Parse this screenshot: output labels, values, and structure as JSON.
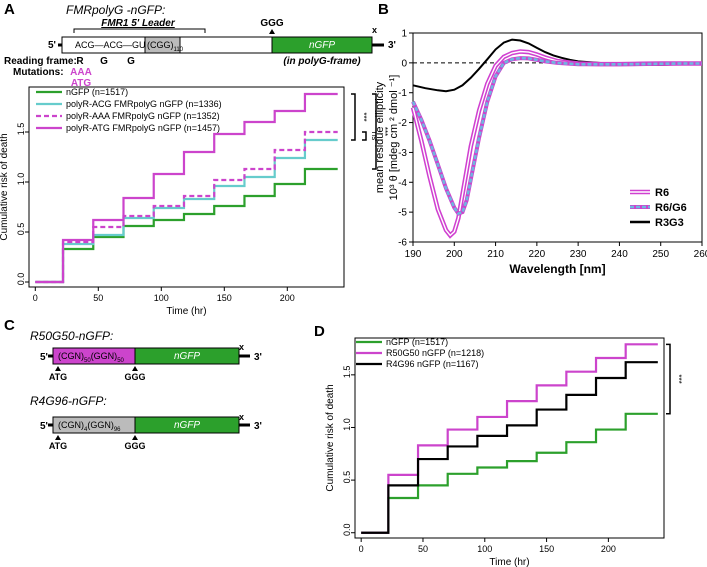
{
  "panels": {
    "A": {
      "label": "A",
      "construct": {
        "title": "FMRpolyG -nGFP:",
        "leader_label": "FMR1 5' Leader",
        "ggg_label": "GGG",
        "x_label": "x",
        "five_prime": "5'",
        "three_prime": "3'",
        "codons": "ACG—ACG—GUG",
        "repeat": "(CGG)",
        "repeat_sub": "110",
        "gfp": "nGFP",
        "in_frame": "(in polyG-frame)",
        "reading_frame_label": "Reading frame:",
        "reading_frame_letters": [
          "R",
          "G",
          "G"
        ],
        "mutations_label": "Mutations:",
        "mutations": [
          "AAA",
          "ATG"
        ]
      },
      "chart_data": {
        "type": "line",
        "steps": true,
        "title": "",
        "xlabel": "Time (hr)",
        "ylabel": "Cumulative risk of death",
        "xlim": [
          -5,
          245
        ],
        "ylim": [
          -0.05,
          1.95
        ],
        "xticks": [
          0,
          50,
          100,
          150,
          200
        ],
        "yticks": [
          0.0,
          0.5,
          1.0,
          1.5
        ],
        "step_times": [
          0,
          22,
          46,
          70,
          94,
          118,
          142,
          166,
          190,
          214
        ],
        "end_time": 240,
        "series": [
          {
            "name": "nGFP (n=1517)",
            "color": "#2ca02c",
            "dashed": false,
            "values": [
              0,
              0.33,
              0.45,
              0.56,
              0.62,
              0.68,
              0.76,
              0.86,
              0.98,
              1.13
            ]
          },
          {
            "name": "polyR-ACG FMRpolyG nGFP (n=1336)",
            "color": "#66cccc",
            "dashed": false,
            "values": [
              0,
              0.38,
              0.47,
              0.64,
              0.74,
              0.83,
              0.96,
              1.05,
              1.24,
              1.42
            ]
          },
          {
            "name": "polyR-AAA FMRpolyG nGFP (n=1352)",
            "color": "#cc44cc",
            "dashed": true,
            "values": [
              0,
              0.4,
              0.55,
              0.66,
              0.76,
              0.86,
              1.02,
              1.13,
              1.32,
              1.5
            ]
          },
          {
            "name": "polyR-ATG FMRpolyG nGFP (n=1457)",
            "color": "#cc44cc",
            "dashed": false,
            "values": [
              0,
              0.42,
              0.62,
              0.84,
              1.08,
              1.3,
              1.48,
              1.6,
              1.71,
              1.88
            ]
          }
        ],
        "significance": [
          {
            "label": "***",
            "from_series": 3,
            "to_series": 1
          },
          {
            "label": "ns",
            "from_series": 2,
            "to_series": 1
          },
          {
            "label": "***",
            "from_series": 3,
            "to_series": 0
          }
        ]
      }
    },
    "B": {
      "label": "B",
      "chart_data": {
        "type": "line",
        "title": "",
        "xlabel": "Wavelength [nm]",
        "ylabel_line1": "mean residue ellipticity",
        "ylabel_line2": "10³ θ [mdeg cm ² dmol ⁻¹]",
        "xlim": [
          190,
          260
        ],
        "ylim": [
          -6,
          1
        ],
        "xticks": [
          190,
          200,
          210,
          220,
          230,
          240,
          250,
          260
        ],
        "yticks": [
          1,
          0,
          -1,
          -2,
          -3,
          -4,
          -5,
          -6
        ],
        "zero_line": true,
        "series": [
          {
            "name": "R6",
            "color": "#d040d0",
            "style": "double",
            "x": [
              190,
              192,
              194,
              196,
              198,
              199,
              200,
              201,
              202,
              203,
              204,
              206,
              208,
              210,
              212,
              214,
              216,
              218,
              220,
              222,
              225,
              230,
              235,
              240,
              245,
              250,
              255,
              260
            ],
            "y": [
              -1.5,
              -2.6,
              -3.8,
              -4.9,
              -5.6,
              -5.78,
              -5.65,
              -5.2,
              -4.4,
              -3.6,
              -2.8,
              -1.6,
              -0.7,
              -0.1,
              0.2,
              0.33,
              0.38,
              0.36,
              0.28,
              0.18,
              0.06,
              -0.02,
              -0.04,
              -0.04,
              -0.03,
              -0.02,
              -0.02,
              -0.02
            ]
          },
          {
            "name": "R6/G6",
            "color": "#6fb6e0",
            "style": "dashed",
            "x": [
              190,
              192,
              194,
              196,
              198,
              200,
              201,
              202,
              203,
              204,
              206,
              208,
              210,
              212,
              214,
              216,
              218,
              220,
              222,
              225,
              230,
              235,
              240,
              245,
              250,
              255,
              260
            ],
            "y": [
              -1.3,
              -1.9,
              -2.6,
              -3.4,
              -4.2,
              -4.85,
              -5.05,
              -5.0,
              -4.6,
              -3.9,
              -2.5,
              -1.3,
              -0.45,
              0.0,
              0.12,
              0.16,
              0.15,
              0.1,
              0.05,
              0.0,
              -0.05,
              -0.05,
              -0.05,
              -0.04,
              -0.03,
              -0.02,
              -0.02
            ]
          },
          {
            "name": "R3G3",
            "color": "#000000",
            "style": "solid",
            "x": [
              190,
              193,
              196,
              198,
              200,
              202,
              204,
              206,
              208,
              210,
              212,
              214,
              216,
              218,
              220,
              222,
              224,
              226,
              228,
              230,
              235,
              240,
              245,
              250,
              255,
              260
            ],
            "y": [
              -0.75,
              -0.85,
              -0.92,
              -0.95,
              -0.9,
              -0.75,
              -0.5,
              -0.2,
              0.12,
              0.45,
              0.68,
              0.78,
              0.75,
              0.65,
              0.5,
              0.36,
              0.25,
              0.17,
              0.1,
              0.05,
              0.0,
              -0.05,
              -0.07,
              -0.07,
              -0.05,
              -0.05
            ]
          }
        ]
      }
    },
    "C": {
      "label": "C",
      "constructs": [
        {
          "title": "R50G50-nGFP:",
          "five_prime": "5'",
          "three_prime": "3'",
          "x_label": "x",
          "repeat_a": "(CGN)",
          "repeat_a_sub": "50",
          "repeat_b": "(GGN)",
          "repeat_b_sub": "50",
          "gfp": "nGFP",
          "start_label": "ATG",
          "ggg_label": "GGG",
          "repeat_color": "#cc44cc"
        },
        {
          "title": "R4G96-nGFP:",
          "five_prime": "5'",
          "three_prime": "3'",
          "x_label": "x",
          "repeat_a": "(CGN)",
          "repeat_a_sub": "4",
          "repeat_b": "(GGN)",
          "repeat_b_sub": "96",
          "gfp": "nGFP",
          "start_label": "ATG",
          "ggg_label": "GGG",
          "repeat_color": "#bbbbbb"
        }
      ]
    },
    "D": {
      "label": "D",
      "chart_data": {
        "type": "line",
        "steps": true,
        "title": "",
        "xlabel": "Time (hr)",
        "ylabel": "Cumulative risk of death",
        "xlim": [
          -5,
          245
        ],
        "ylim": [
          -0.05,
          1.85
        ],
        "xticks": [
          0,
          50,
          100,
          150,
          200
        ],
        "yticks": [
          0.0,
          0.5,
          1.0,
          1.5
        ],
        "step_times": [
          0,
          22,
          46,
          70,
          94,
          118,
          142,
          166,
          190,
          214
        ],
        "end_time": 240,
        "series": [
          {
            "name": "nGFP (n=1517)",
            "color": "#2ca02c",
            "dashed": false,
            "values": [
              0,
              0.33,
              0.45,
              0.56,
              0.62,
              0.68,
              0.76,
              0.86,
              0.98,
              1.13
            ]
          },
          {
            "name": "R50G50 nGFP (n=1218)",
            "color": "#cc44cc",
            "dashed": false,
            "values": [
              0,
              0.55,
              0.83,
              0.98,
              1.1,
              1.25,
              1.4,
              1.53,
              1.66,
              1.79
            ]
          },
          {
            "name": "R4G96 nGFP (n=1167)",
            "color": "#000000",
            "dashed": false,
            "values": [
              0,
              0.45,
              0.7,
              0.82,
              0.92,
              1.02,
              1.17,
              1.31,
              1.47,
              1.62
            ]
          }
        ],
        "significance": [
          {
            "label": "***",
            "from_series": 1,
            "to_series": 0
          }
        ]
      }
    }
  }
}
